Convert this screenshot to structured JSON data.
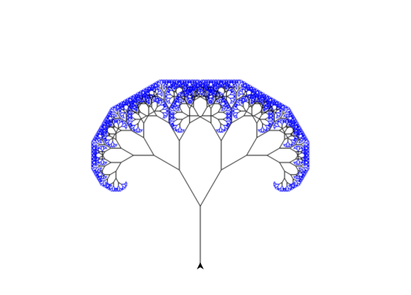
{
  "canvas": {
    "background_color": "#ffffff"
  },
  "fractal": {
    "kind": "binary-tree",
    "trunk_color": "#000000",
    "leaf_color": "#0000ff",
    "depth": 13,
    "branch_angle_deg": 60,
    "length_ratio": 0.7,
    "leaf_start_level": 9
  },
  "cursor": {
    "icon": "turtle-arrow-icon",
    "heading": "up",
    "color": "#000000"
  }
}
